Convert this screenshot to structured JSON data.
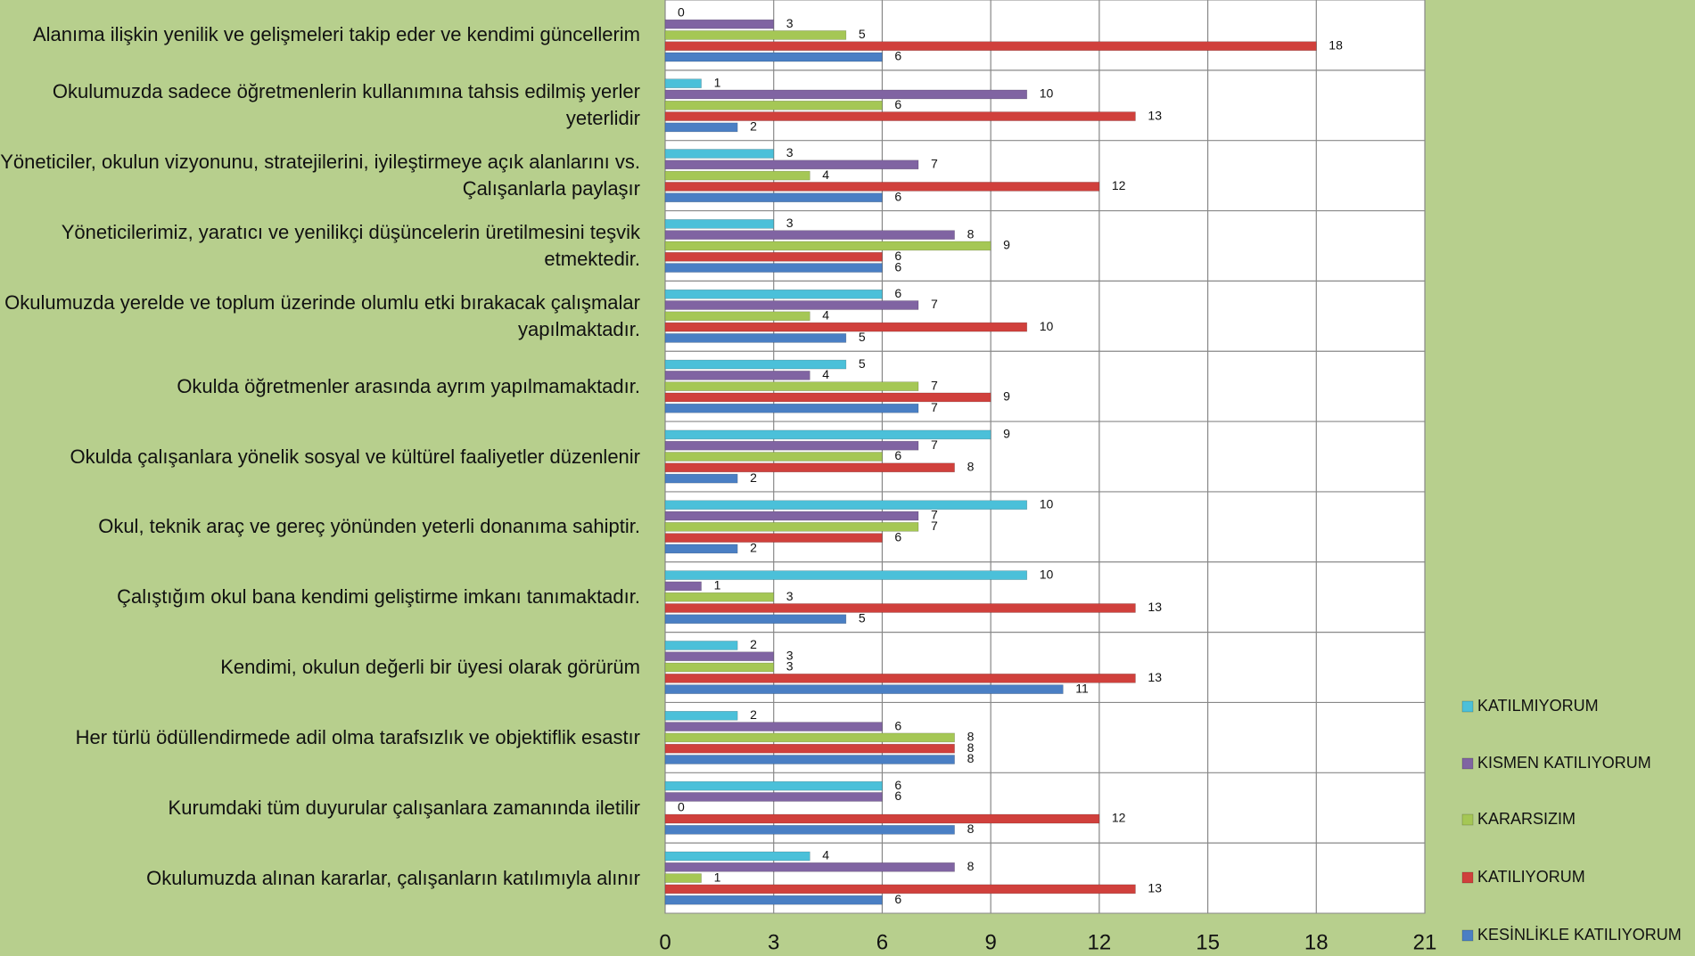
{
  "chart_data": {
    "type": "bar",
    "orientation": "horizontal",
    "categories": [
      "Alanıma ilişkin yenilik ve gelişmeleri takip eder ve kendimi güncellerim",
      "Okulumuzda sadece öğretmenlerin kullanımına tahsis edilmiş yerler yeterlidir",
      "Yöneticiler, okulun vizyonunu, stratejilerini, iyileştirmeye açık alanlarını vs. Çalışanlarla paylaşır",
      "Yöneticilerimiz, yaratıcı ve yenilikçi düşüncelerin üretilmesini teşvik etmektedir.",
      "Okulumuzda yerelde ve toplum üzerinde olumlu etki bırakacak çalışmalar yapılmaktadır.",
      "Okulda öğretmenler arasında ayrım yapılmamaktadır.",
      "Okulda çalışanlara yönelik sosyal ve kültürel faaliyetler düzenlenir",
      "Okul, teknik araç ve gereç yönünden yeterli donanıma sahiptir.",
      "Çalıştığım okul bana kendimi geliştirme imkanı tanımaktadır.",
      "Kendimi, okulun değerli bir üyesi olarak görürüm",
      "Her türlü ödüllendirmede adil olma tarafsızlık ve objektiflik esastır",
      "Kurumdaki tüm duyurular çalışanlara zamanında iletilir",
      "Okulumuzda alınan kararlar, çalışanların katılımıyla alınır"
    ],
    "series": [
      {
        "name": "KATILMIYORUM",
        "color": "#4bc0d9",
        "values": [
          0,
          1,
          3,
          3,
          6,
          5,
          9,
          10,
          10,
          2,
          2,
          6,
          4
        ]
      },
      {
        "name": "KISMEN KATILIYORUM",
        "color": "#8064a2",
        "values": [
          3,
          10,
          7,
          8,
          7,
          4,
          7,
          7,
          1,
          3,
          6,
          6,
          8
        ]
      },
      {
        "name": "KARARSIZIM",
        "color": "#a5c755",
        "values": [
          5,
          6,
          4,
          9,
          4,
          7,
          6,
          7,
          3,
          3,
          8,
          0,
          1
        ]
      },
      {
        "name": "KATILIYORUM",
        "color": "#d0403c",
        "values": [
          18,
          13,
          12,
          6,
          10,
          9,
          8,
          6,
          13,
          13,
          8,
          12,
          13
        ]
      },
      {
        "name": "KESİNLİKLE KATILIYORUM",
        "color": "#4a7fc4",
        "values": [
          6,
          2,
          6,
          6,
          5,
          7,
          2,
          2,
          5,
          11,
          8,
          8,
          6
        ]
      }
    ],
    "xlim": [
      0,
      21
    ],
    "xticks": [
      0,
      3,
      6,
      9,
      12,
      15,
      18,
      21
    ],
    "grid": true,
    "legend": "right"
  }
}
